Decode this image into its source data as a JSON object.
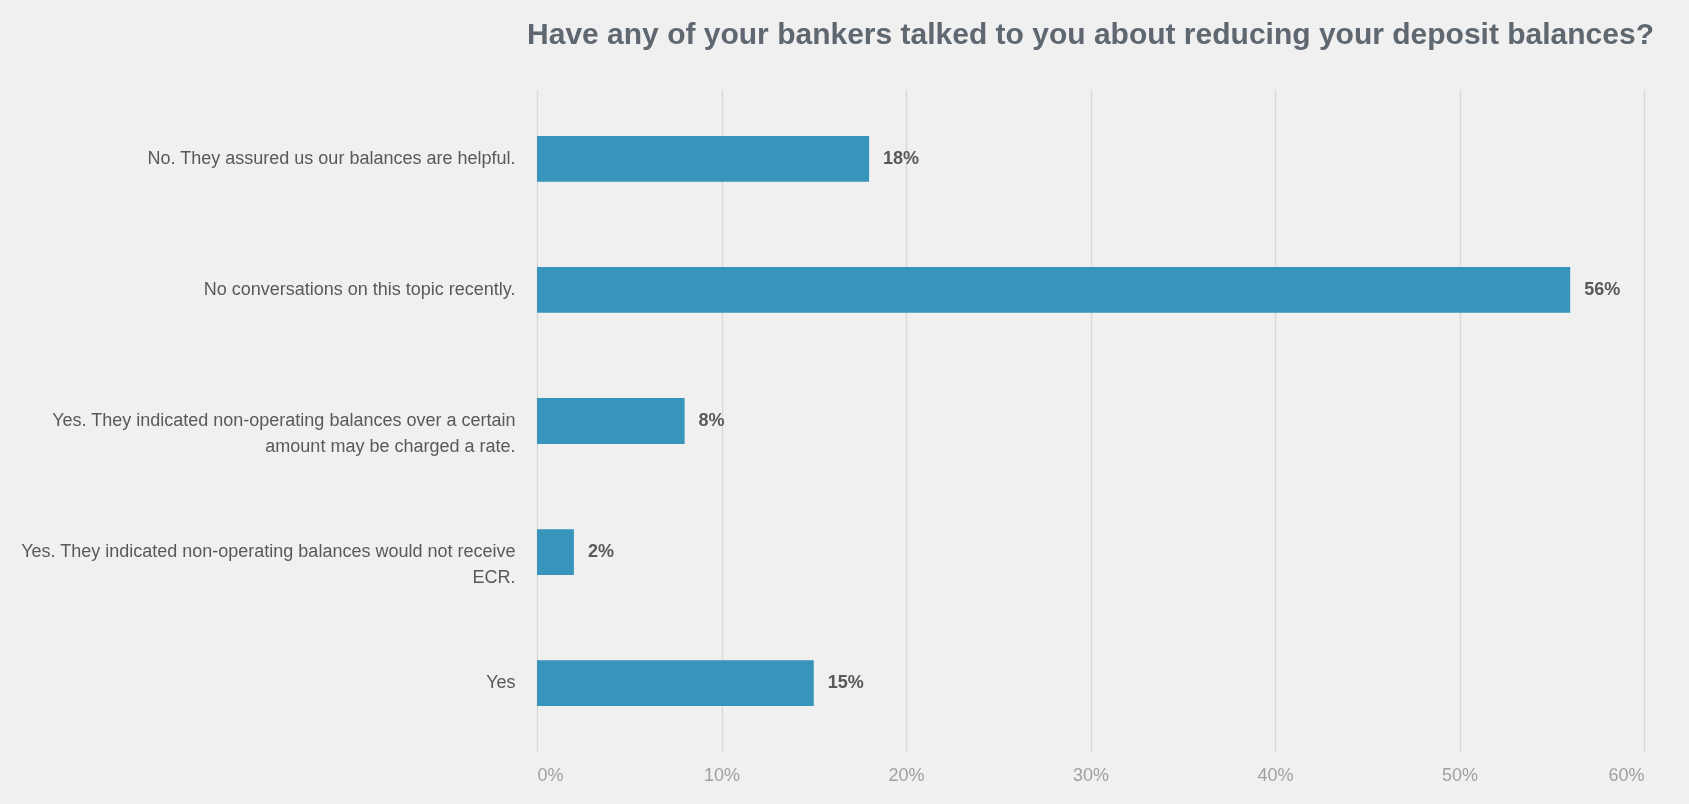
{
  "chart_data": {
    "type": "bar",
    "orientation": "horizontal",
    "title": "Have any of your bankers talked to you about reducing your deposit balances?",
    "categories": [
      "No. They assured us our balances are helpful.",
      "No conversations on this topic recently.",
      "Yes. They indicated non-operating balances over a certain amount may be charged a rate.",
      "Yes. They indicated non-operating balances would not receive ECR.",
      "Yes"
    ],
    "values": [
      18,
      56,
      8,
      2,
      15
    ],
    "value_labels": [
      "18%",
      "56%",
      "8%",
      "2%",
      "15%"
    ],
    "color": "#3795bb",
    "xlim": [
      0,
      60
    ],
    "xticks": [
      {
        "value": 0,
        "label": "0%"
      },
      {
        "value": 10,
        "label": "10%"
      },
      {
        "value": 20,
        "label": "20%"
      },
      {
        "value": 30,
        "label": "30%"
      },
      {
        "value": 40,
        "label": "40%"
      },
      {
        "value": 50,
        "label": "50%"
      },
      {
        "value": 60,
        "label": "60%"
      }
    ],
    "grid": "x"
  }
}
